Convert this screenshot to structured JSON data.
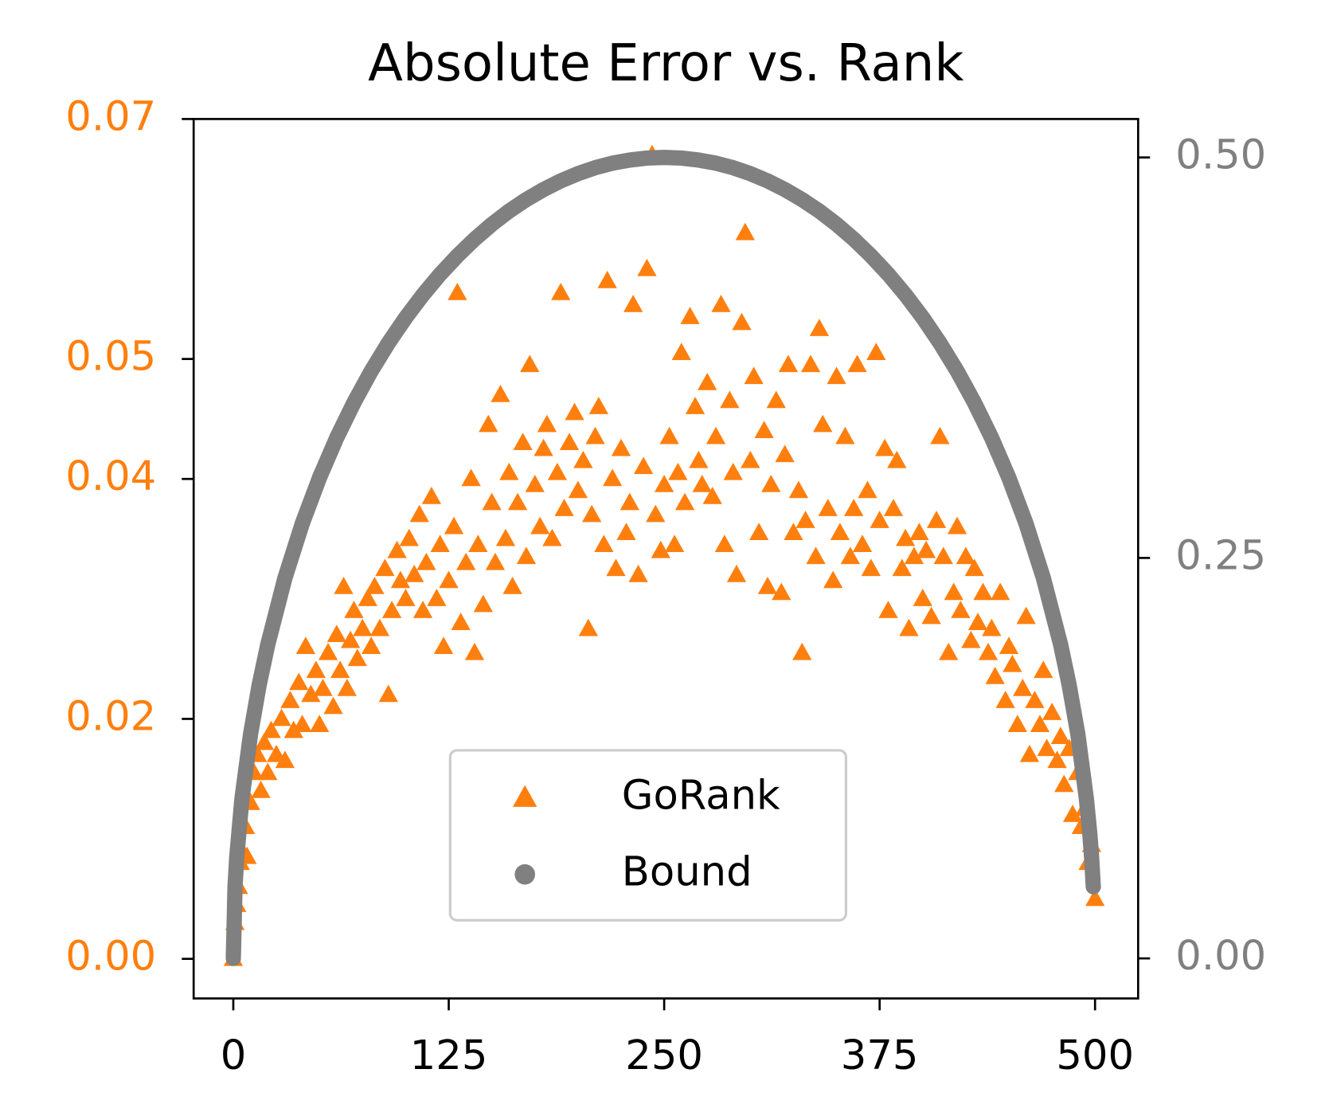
{
  "chart_data": {
    "type": "scatter",
    "title": "Absolute Error vs. Rank",
    "xlim": [
      -23,
      525
    ],
    "xticks": [
      0,
      125,
      250,
      375,
      500
    ],
    "ylim": [
      -0.0033,
      0.07
    ],
    "yticks": [
      {
        "value": 0,
        "label": "0.00"
      },
      0.02,
      0.04,
      0.05,
      0.07
    ],
    "ycolor": "#ff7f0e",
    "y2lim": [
      -0.025,
      0.524
    ],
    "y2ticks": [
      {
        "value": 0,
        "label": "0.00"
      },
      0.25,
      {
        "value": 0.5,
        "label": "0.50"
      }
    ],
    "y2color": "#808080",
    "legend": "lower center",
    "series": [
      {
        "name": "GoRank",
        "color": "#ff7f0e",
        "marker": "triangle",
        "x": [
          0,
          1,
          2,
          3,
          4,
          5,
          7,
          8,
          10,
          12,
          14,
          16,
          18,
          20,
          22,
          25,
          28,
          30,
          33,
          35,
          38,
          40,
          42,
          45,
          48,
          50,
          52,
          55,
          58,
          60,
          62,
          64,
          66,
          68,
          70,
          72,
          75,
          78,
          80,
          82,
          85,
          88,
          90,
          92,
          95,
          97,
          100,
          102,
          105,
          108,
          110,
          112,
          115,
          118,
          120,
          122,
          125,
          128,
          130,
          132,
          135,
          138,
          140,
          142,
          145,
          148,
          150,
          152,
          155,
          158,
          160,
          162,
          165,
          168,
          170,
          172,
          175,
          178,
          180,
          182,
          185,
          188,
          190,
          192,
          195,
          198,
          200,
          203,
          206,
          208,
          210,
          212,
          215,
          217,
          220,
          222,
          225,
          228,
          230,
          232,
          235,
          238,
          240,
          243,
          245,
          248,
          250,
          253,
          256,
          258,
          260,
          262,
          265,
          268,
          270,
          272,
          275,
          278,
          280,
          283,
          285,
          288,
          290,
          292,
          295,
          297,
          300,
          302,
          305,
          308,
          310,
          312,
          315,
          318,
          320,
          322,
          325,
          328,
          330,
          332,
          335,
          338,
          340,
          342,
          345,
          348,
          350,
          352,
          355,
          358,
          360,
          362,
          365,
          368,
          370,
          373,
          375,
          378,
          380,
          383,
          385,
          388,
          390,
          392,
          395,
          398,
          400,
          402,
          405,
          408,
          410,
          412,
          415,
          418,
          420,
          422,
          425,
          428,
          430,
          432,
          435,
          438,
          440,
          442,
          445,
          448,
          450,
          452,
          455,
          458,
          460,
          462,
          465,
          468,
          470,
          472,
          475,
          478,
          480,
          482,
          485,
          487,
          490,
          492,
          494,
          496,
          498,
          500
        ],
        "values": [
          0,
          0.003,
          0.0045,
          0.006,
          0.008,
          0.009,
          0.011,
          0.0085,
          0.013,
          0.0155,
          0.017,
          0.014,
          0.018,
          0.0155,
          0.019,
          0.017,
          0.02,
          0.0165,
          0.0215,
          0.019,
          0.023,
          0.0195,
          0.026,
          0.022,
          0.024,
          0.0195,
          0.0225,
          0.0255,
          0.021,
          0.027,
          0.024,
          0.031,
          0.0225,
          0.0265,
          0.029,
          0.025,
          0.0275,
          0.03,
          0.026,
          0.031,
          0.0275,
          0.0325,
          0.022,
          0.029,
          0.034,
          0.0315,
          0.03,
          0.035,
          0.032,
          0.037,
          0.029,
          0.033,
          0.0385,
          0.03,
          0.0345,
          0.026,
          0.0315,
          0.036,
          0.0555,
          0.028,
          0.033,
          0.04,
          0.0255,
          0.0345,
          0.0295,
          0.0445,
          0.038,
          0.033,
          0.047,
          0.035,
          0.0405,
          0.031,
          0.038,
          0.043,
          0.0335,
          0.0495,
          0.0395,
          0.036,
          0.0425,
          0.0445,
          0.035,
          0.0405,
          0.0555,
          0.0375,
          0.043,
          0.0455,
          0.039,
          0.0415,
          0.0275,
          0.037,
          0.0435,
          0.046,
          0.0345,
          0.0565,
          0.04,
          0.0325,
          0.0425,
          0.0355,
          0.038,
          0.0545,
          0.032,
          0.041,
          0.0575,
          0.067,
          0.037,
          0.034,
          0.0395,
          0.0435,
          0.0345,
          0.0405,
          0.0505,
          0.038,
          0.0535,
          0.046,
          0.0415,
          0.0395,
          0.048,
          0.0385,
          0.0435,
          0.0545,
          0.0345,
          0.0465,
          0.0405,
          0.032,
          0.053,
          0.0605,
          0.0415,
          0.0485,
          0.0355,
          0.044,
          0.031,
          0.0395,
          0.0465,
          0.0305,
          0.042,
          0.0495,
          0.0355,
          0.039,
          0.0255,
          0.0365,
          0.0495,
          0.0335,
          0.0525,
          0.0445,
          0.0375,
          0.0315,
          0.0485,
          0.0355,
          0.0435,
          0.0335,
          0.0375,
          0.0495,
          0.0345,
          0.039,
          0.0325,
          0.0505,
          0.0365,
          0.0425,
          0.029,
          0.0375,
          0.0415,
          0.0325,
          0.035,
          0.0275,
          0.0335,
          0.0355,
          0.03,
          0.034,
          0.0285,
          0.0365,
          0.0435,
          0.0335,
          0.0255,
          0.0305,
          0.036,
          0.029,
          0.0335,
          0.0265,
          0.0325,
          0.028,
          0.0305,
          0.0255,
          0.0275,
          0.0235,
          0.0305,
          0.0215,
          0.026,
          0.0245,
          0.0195,
          0.0225,
          0.0285,
          0.017,
          0.0215,
          0.0195,
          0.024,
          0.0175,
          0.0205,
          0.0165,
          0.0185,
          0.0145,
          0.0175,
          0.012,
          0.0155,
          0.011,
          0.0125,
          0.008,
          0.0095,
          0.005
        ]
      },
      {
        "name": "Bound",
        "color": "#808080",
        "marker": "circle",
        "axis": "y2",
        "x": [
          0,
          1,
          2,
          5,
          10,
          15,
          20,
          30,
          40,
          50,
          60,
          70,
          80,
          90,
          100,
          110,
          120,
          130,
          140,
          150,
          160,
          170,
          180,
          190,
          200,
          210,
          220,
          230,
          240,
          250,
          260,
          270,
          280,
          290,
          300,
          310,
          320,
          330,
          340,
          350,
          360,
          370,
          380,
          390,
          400,
          410,
          420,
          430,
          440,
          450,
          460,
          470,
          480,
          485,
          490,
          495,
          497,
          498,
          499
        ],
        "values": [
          0,
          0.0447,
          0.0631,
          0.0995,
          0.14,
          0.1706,
          0.196,
          0.2375,
          0.2713,
          0.3,
          0.325,
          0.347,
          0.3666,
          0.3842,
          0.4,
          0.4142,
          0.4271,
          0.4386,
          0.449,
          0.4583,
          0.4665,
          0.4737,
          0.48,
          0.4854,
          0.4899,
          0.4936,
          0.4964,
          0.4984,
          0.4996,
          0.5,
          0.4996,
          0.4984,
          0.4964,
          0.4936,
          0.4899,
          0.4854,
          0.48,
          0.4737,
          0.4665,
          0.4583,
          0.449,
          0.4386,
          0.4271,
          0.4142,
          0.4,
          0.3842,
          0.3666,
          0.347,
          0.325,
          0.3,
          0.2713,
          0.2375,
          0.196,
          0.1706,
          0.14,
          0.0995,
          0.0772,
          0.0631,
          0.0447
        ]
      }
    ]
  }
}
